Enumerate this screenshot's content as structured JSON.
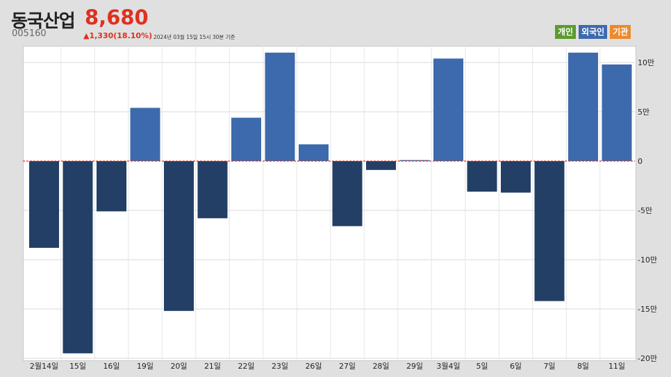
{
  "header": {
    "name": "동국산업",
    "code": "005160",
    "price": "8,680",
    "change": "▲1,330(18.10%)",
    "as_of": "2024년 03월 15일 15시 30분 기준"
  },
  "legend": [
    {
      "label": "개인",
      "color": "#5b9b2f"
    },
    {
      "label": "외국인",
      "color": "#3d6aad"
    },
    {
      "label": "기관",
      "color": "#ec8a2e"
    }
  ],
  "colors": {
    "positive": "#3d6aad",
    "negative": "#233f66",
    "zero_line": "#e0301e"
  },
  "chart_data": {
    "type": "bar",
    "series": [
      {
        "name": "외국인"
      }
    ],
    "categories": [
      "2월14일",
      "15일",
      "16일",
      "19일",
      "20일",
      "21일",
      "22일",
      "23일",
      "26일",
      "27일",
      "28일",
      "29일",
      "3월4일",
      "5일",
      "6일",
      "7일",
      "8일",
      "11일"
    ],
    "values": [
      -88000,
      -195000,
      -51000,
      54000,
      -152000,
      -58000,
      44000,
      110000,
      17000,
      -66000,
      -9000,
      1000,
      104000,
      -31000,
      -32000,
      -142000,
      110000,
      98000
    ],
    "ylim": [
      -200000,
      110000
    ],
    "yticks": [
      {
        "value": 100000,
        "label": "10만"
      },
      {
        "value": 50000,
        "label": "5만"
      },
      {
        "value": 0,
        "label": "0"
      },
      {
        "value": -50000,
        "label": "-5만"
      },
      {
        "value": -100000,
        "label": "-10만"
      },
      {
        "value": -150000,
        "label": "-15만"
      },
      {
        "value": -200000,
        "label": "-20만"
      }
    ],
    "grid": true
  }
}
